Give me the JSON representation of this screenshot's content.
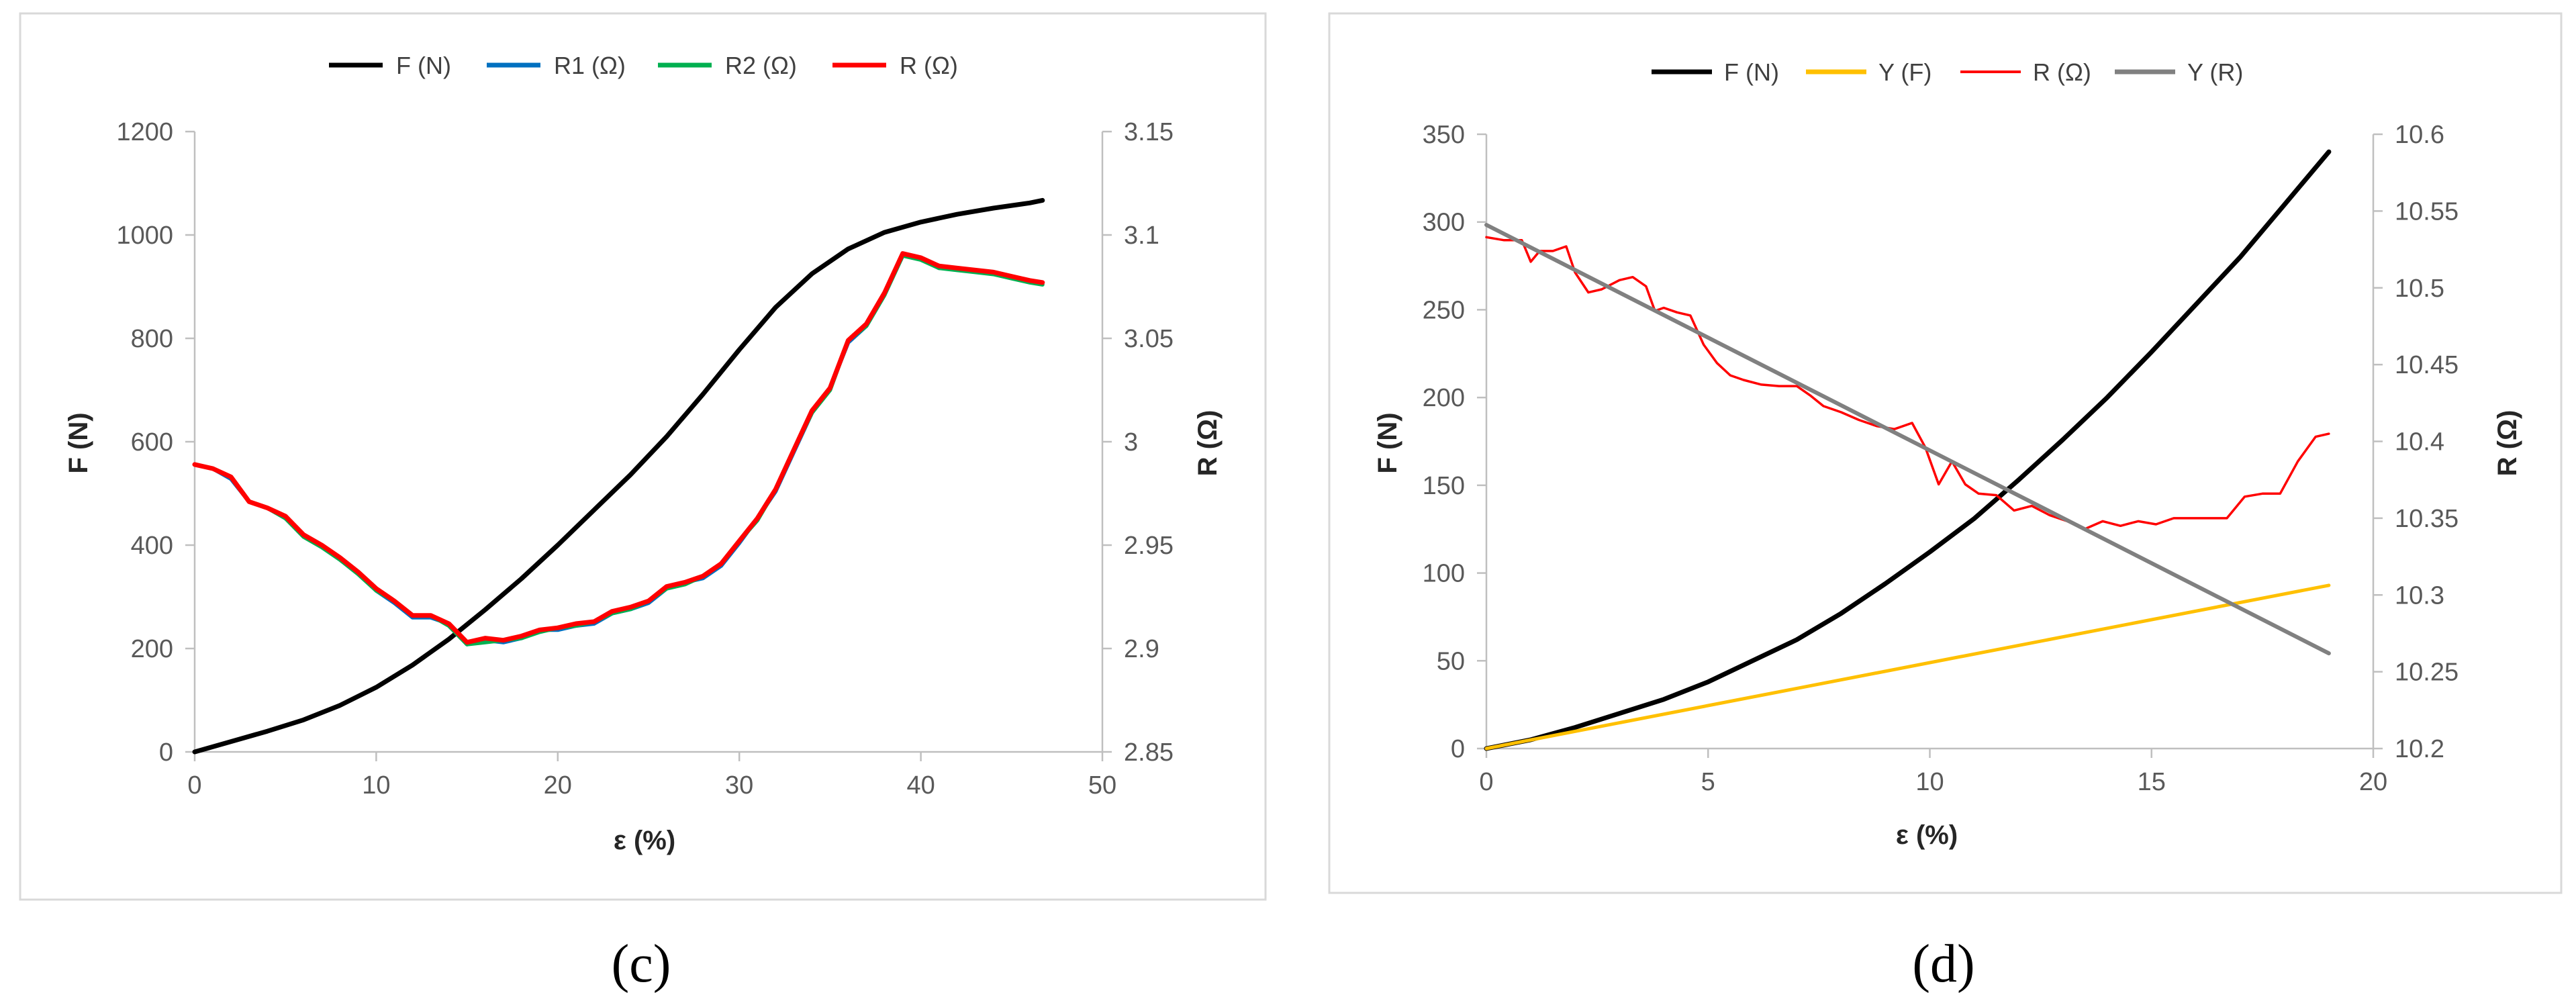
{
  "chart_data": [
    {
      "id": "c",
      "type": "line",
      "caption": "(c)",
      "title": "",
      "xlabel": "ε (%)",
      "ylabel": "F (N)",
      "y2label": "R (Ω)",
      "xlim": [
        0,
        50
      ],
      "ylim": [
        0,
        1200
      ],
      "y2lim": [
        2.85,
        3.15
      ],
      "xticks": [
        "0",
        "10",
        "20",
        "30",
        "40",
        "50"
      ],
      "yticks": [
        "0",
        "200",
        "400",
        "600",
        "800",
        "1000",
        "1200"
      ],
      "y2ticks": [
        "2.85",
        "2.9",
        "2.95",
        "3",
        "3.05",
        "3.1",
        "3.15"
      ],
      "legend_position": "top",
      "colors": {
        "F": "#000000",
        "R1": "#0070c0",
        "R2": "#00b050",
        "R": "#ff0000"
      },
      "series": [
        {
          "name": "F (N)",
          "key": "F",
          "axis": "left",
          "x": [
            0,
            2,
            4,
            6,
            8,
            10,
            12,
            14,
            16,
            18,
            20,
            22,
            24,
            26,
            28,
            30,
            32,
            34,
            36,
            38,
            40,
            42,
            44,
            46,
            46.7
          ],
          "y": [
            0,
            20,
            40,
            62,
            90,
            125,
            168,
            218,
            275,
            335,
            400,
            468,
            536,
            610,
            692,
            778,
            860,
            925,
            973,
            1005,
            1025,
            1040,
            1052,
            1062,
            1067
          ]
        },
        {
          "name": "R1 (Ω)",
          "key": "R1",
          "axis": "right",
          "x": [
            0,
            1,
            2,
            3,
            4,
            5,
            6,
            7,
            8,
            9,
            10,
            11,
            12,
            13,
            14,
            15,
            16,
            17,
            18,
            19,
            20,
            21,
            22,
            23,
            24,
            25,
            26,
            27,
            28,
            29,
            30,
            31,
            32,
            33,
            34,
            35,
            36,
            37,
            38,
            39,
            40,
            41,
            42,
            43,
            44,
            45,
            46,
            46.7
          ],
          "y": [
            2.989,
            2.987,
            2.982,
            2.971,
            2.968,
            2.963,
            2.955,
            2.95,
            2.944,
            2.937,
            2.928,
            2.922,
            2.915,
            2.915,
            2.912,
            2.902,
            2.904,
            2.903,
            2.905,
            2.909,
            2.909,
            2.911,
            2.912,
            2.917,
            2.919,
            2.922,
            2.929,
            2.932,
            2.934,
            2.94,
            2.951,
            2.963,
            2.976,
            2.995,
            3.014,
            3.026,
            3.048,
            3.056,
            3.071,
            3.09,
            3.089,
            3.084,
            3.084,
            3.083,
            3.082,
            3.08,
            3.078,
            3.077
          ]
        },
        {
          "name": "R2 (Ω)",
          "key": "R2",
          "axis": "right",
          "x": [
            0,
            1,
            2,
            3,
            4,
            5,
            6,
            7,
            8,
            9,
            10,
            11,
            12,
            13,
            14,
            15,
            16,
            17,
            18,
            19,
            20,
            21,
            22,
            23,
            24,
            25,
            26,
            27,
            28,
            29,
            30,
            31,
            32,
            33,
            34,
            35,
            36,
            37,
            38,
            39,
            40,
            41,
            42,
            43,
            44,
            45,
            46,
            46.7
          ],
          "y": [
            2.989,
            2.987,
            2.983,
            2.971,
            2.968,
            2.963,
            2.954,
            2.949,
            2.943,
            2.936,
            2.928,
            2.923,
            2.916,
            2.916,
            2.911,
            2.902,
            2.903,
            2.904,
            2.905,
            2.908,
            2.91,
            2.911,
            2.913,
            2.917,
            2.919,
            2.923,
            2.929,
            2.931,
            2.935,
            2.941,
            2.952,
            2.962,
            2.977,
            2.996,
            3.014,
            3.025,
            3.049,
            3.056,
            3.071,
            3.09,
            3.088,
            3.084,
            3.083,
            3.082,
            3.081,
            3.079,
            3.077,
            3.076
          ]
        },
        {
          "name": "R (Ω)",
          "key": "R",
          "axis": "right",
          "x": [
            0,
            1,
            2,
            3,
            4,
            5,
            6,
            7,
            8,
            9,
            10,
            11,
            12,
            13,
            14,
            15,
            16,
            17,
            18,
            19,
            20,
            21,
            22,
            23,
            24,
            25,
            26,
            27,
            28,
            29,
            30,
            31,
            32,
            33,
            34,
            35,
            36,
            37,
            38,
            39,
            40,
            41,
            42,
            43,
            44,
            45,
            46,
            46.7
          ],
          "y": [
            2.989,
            2.987,
            2.983,
            2.971,
            2.968,
            2.964,
            2.955,
            2.95,
            2.944,
            2.937,
            2.929,
            2.923,
            2.916,
            2.916,
            2.912,
            2.903,
            2.905,
            2.904,
            2.906,
            2.909,
            2.91,
            2.912,
            2.913,
            2.918,
            2.92,
            2.923,
            2.93,
            2.932,
            2.935,
            2.941,
            2.952,
            2.963,
            2.977,
            2.996,
            3.015,
            3.026,
            3.049,
            3.057,
            3.072,
            3.091,
            3.089,
            3.085,
            3.084,
            3.083,
            3.082,
            3.08,
            3.078,
            3.077
          ]
        }
      ]
    },
    {
      "id": "d",
      "type": "line",
      "caption": "(d)",
      "title": "",
      "xlabel": "ε (%)",
      "ylabel": "F (N)",
      "y2label": "R (Ω)",
      "xlim": [
        0,
        20
      ],
      "ylim": [
        0,
        350
      ],
      "y2lim": [
        10.2,
        10.6
      ],
      "xticks": [
        "0",
        "5",
        "10",
        "15",
        "20"
      ],
      "yticks": [
        "0",
        "50",
        "100",
        "150",
        "200",
        "250",
        "300",
        "350"
      ],
      "y2ticks": [
        "10.2",
        "10.25",
        "10.3",
        "10.35",
        "10.4",
        "10.45",
        "10.5",
        "10.55",
        "10.6"
      ],
      "legend_position": "top",
      "colors": {
        "F": "#000000",
        "YF": "#ffc000",
        "R": "#ff0000",
        "YR": "#808080"
      },
      "series": [
        {
          "name": "F (N)",
          "key": "F",
          "axis": "left",
          "x": [
            0,
            1,
            2,
            3,
            4,
            5,
            6,
            7,
            8,
            9,
            10,
            11,
            12,
            13,
            14,
            15,
            16,
            17,
            18,
            19
          ],
          "y": [
            0,
            5,
            12,
            20,
            28,
            38,
            50,
            62,
            77,
            94,
            112,
            131,
            153,
            176,
            200,
            226,
            253,
            280,
            310,
            340
          ]
        },
        {
          "name": "Y (F)",
          "key": "YF",
          "axis": "left",
          "x": [
            0,
            19
          ],
          "y": [
            0,
            93
          ]
        },
        {
          "name": "R (Ω)",
          "key": "R",
          "axis": "right",
          "x": [
            0,
            0.4,
            0.8,
            1.0,
            1.2,
            1.5,
            1.8,
            2.0,
            2.3,
            2.6,
            3.0,
            3.3,
            3.6,
            3.8,
            4.0,
            4.3,
            4.6,
            4.9,
            5.2,
            5.5,
            5.8,
            6.2,
            6.6,
            7.0,
            7.3,
            7.6,
            8.0,
            8.4,
            8.8,
            9.2,
            9.6,
            9.9,
            10.2,
            10.5,
            10.8,
            11.1,
            11.5,
            11.9,
            12.3,
            12.7,
            13.1,
            13.5,
            13.9,
            14.3,
            14.7,
            15.1,
            15.5,
            15.9,
            16.3,
            16.7,
            17.1,
            17.5,
            17.9,
            18.3,
            18.7,
            19.0
          ],
          "y": [
            10.533,
            10.531,
            10.531,
            10.517,
            10.524,
            10.524,
            10.527,
            10.51,
            10.497,
            10.499,
            10.505,
            10.507,
            10.501,
            10.485,
            10.487,
            10.484,
            10.482,
            10.463,
            10.451,
            10.443,
            10.44,
            10.437,
            10.436,
            10.436,
            10.43,
            10.423,
            10.419,
            10.414,
            10.41,
            10.408,
            10.412,
            10.396,
            10.372,
            10.387,
            10.372,
            10.366,
            10.365,
            10.355,
            10.358,
            10.352,
            10.348,
            10.343,
            10.348,
            10.345,
            10.348,
            10.346,
            10.35,
            10.35,
            10.35,
            10.35,
            10.364,
            10.366,
            10.366,
            10.387,
            10.403,
            10.405
          ]
        },
        {
          "name": "Y (R)",
          "key": "YR",
          "axis": "right",
          "x": [
            0,
            19
          ],
          "y": [
            10.541,
            10.262
          ]
        }
      ]
    }
  ]
}
